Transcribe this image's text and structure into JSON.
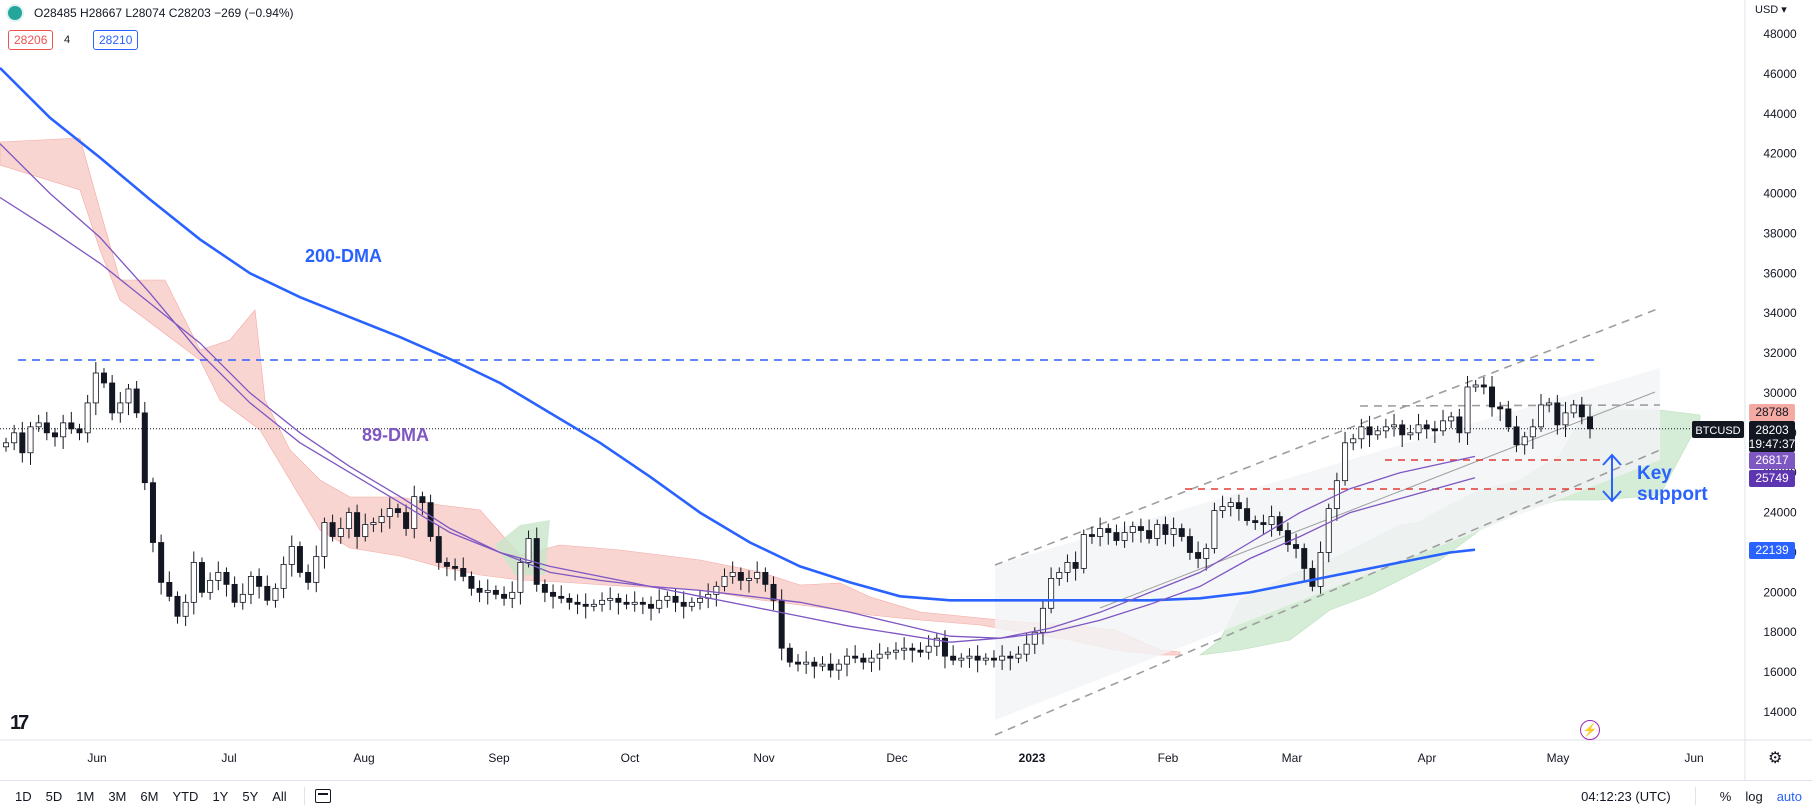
{
  "header": {
    "ohlc": "O28485 H28667 L28074 C28203 −269 (−0.94%)",
    "sell_price": "28206",
    "spread": "4",
    "buy_price": "28210",
    "currency": "USD"
  },
  "bottombar": {
    "timeframes": [
      "1D",
      "5D",
      "1M",
      "3M",
      "6M",
      "YTD",
      "1Y",
      "5Y",
      "All"
    ],
    "time": "04:12:23 (UTC)",
    "percent": "%",
    "log": "log",
    "auto": "auto"
  },
  "annotations": {
    "dma200": "200-DMA",
    "dma89": "89-DMA",
    "key_support_1": "Key",
    "key_support_2": "support"
  },
  "chart_data": {
    "type": "candlestick",
    "symbol": "BTCUSD",
    "ylim": [
      13000,
      49000
    ],
    "y_ticks": [
      14000,
      16000,
      18000,
      20000,
      22000,
      24000,
      26000,
      28000,
      30000,
      32000,
      34000,
      36000,
      38000,
      40000,
      42000,
      44000,
      46000,
      48000
    ],
    "x_labels": [
      "Jun",
      "Jul",
      "Aug",
      "Sep",
      "Oct",
      "Nov",
      "Dec",
      "2023",
      "Feb",
      "Mar",
      "Apr",
      "May",
      "Jun"
    ],
    "price_labels": {
      "last": "28203",
      "countdown": "19:47:37",
      "resistance": "28788",
      "dma89": "26817",
      "dma89_b": "25749",
      "dma200": "22139"
    },
    "dma200_path": [
      [
        0,
        46300
      ],
      [
        50,
        43800
      ],
      [
        100,
        41800
      ],
      [
        150,
        39700
      ],
      [
        200,
        37700
      ],
      [
        250,
        36000
      ],
      [
        300,
        34800
      ],
      [
        350,
        33800
      ],
      [
        400,
        32800
      ],
      [
        450,
        31700
      ],
      [
        500,
        30500
      ],
      [
        550,
        29000
      ],
      [
        600,
        27500
      ],
      [
        650,
        25800
      ],
      [
        700,
        24000
      ],
      [
        750,
        22500
      ],
      [
        800,
        21300
      ],
      [
        850,
        20500
      ],
      [
        900,
        19800
      ],
      [
        950,
        19600
      ],
      [
        1000,
        19600
      ],
      [
        1050,
        19600
      ],
      [
        1100,
        19600
      ],
      [
        1150,
        19600
      ],
      [
        1200,
        19700
      ],
      [
        1250,
        20000
      ],
      [
        1300,
        20500
      ],
      [
        1350,
        21000
      ],
      [
        1400,
        21500
      ],
      [
        1450,
        22000
      ],
      [
        1475,
        22139
      ]
    ],
    "dma89_path": [
      [
        0,
        42500
      ],
      [
        50,
        40000
      ],
      [
        100,
        37800
      ],
      [
        150,
        35000
      ],
      [
        200,
        32000
      ],
      [
        250,
        29500
      ],
      [
        300,
        27500
      ],
      [
        350,
        26000
      ],
      [
        400,
        24500
      ],
      [
        450,
        23000
      ],
      [
        500,
        22000
      ],
      [
        550,
        21300
      ],
      [
        600,
        20800
      ],
      [
        650,
        20300
      ],
      [
        700,
        19800
      ],
      [
        750,
        19300
      ],
      [
        800,
        18800
      ],
      [
        850,
        18300
      ],
      [
        900,
        17900
      ],
      [
        950,
        17500
      ],
      [
        1000,
        17700
      ],
      [
        1050,
        18200
      ],
      [
        1100,
        19000
      ],
      [
        1150,
        20000
      ],
      [
        1200,
        21000
      ],
      [
        1250,
        22500
      ],
      [
        1300,
        24000
      ],
      [
        1350,
        25200
      ],
      [
        1400,
        26000
      ],
      [
        1475,
        26817
      ]
    ],
    "dma_c_path": [
      [
        0,
        39800
      ],
      [
        50,
        38200
      ],
      [
        100,
        36500
      ],
      [
        150,
        34500
      ],
      [
        200,
        32500
      ],
      [
        250,
        30000
      ],
      [
        300,
        28000
      ],
      [
        350,
        26300
      ],
      [
        400,
        24800
      ],
      [
        450,
        23200
      ],
      [
        500,
        22000
      ],
      [
        550,
        21000
      ],
      [
        600,
        20600
      ],
      [
        650,
        20300
      ],
      [
        700,
        20100
      ],
      [
        750,
        19800
      ],
      [
        800,
        19500
      ],
      [
        850,
        19000
      ],
      [
        900,
        18400
      ],
      [
        950,
        17800
      ],
      [
        1000,
        17700
      ],
      [
        1050,
        18000
      ],
      [
        1100,
        18600
      ],
      [
        1150,
        19400
      ],
      [
        1200,
        20300
      ],
      [
        1250,
        21700
      ],
      [
        1300,
        22800
      ],
      [
        1350,
        24000
      ],
      [
        1400,
        24700
      ],
      [
        1475,
        25749
      ]
    ],
    "closes": [
      27500,
      28000,
      27000,
      28300,
      28500,
      28000,
      27800,
      28500,
      28200,
      28000,
      29500,
      31000,
      30500,
      29000,
      29500,
      30200,
      29000,
      25500,
      22500,
      20500,
      19800,
      18800,
      19500,
      21500,
      20000,
      20600,
      21000,
      20400,
      19500,
      19900,
      20800,
      20300,
      19600,
      20200,
      21400,
      22300,
      21000,
      20500,
      21800,
      23500,
      22800,
      23200,
      24000,
      22800,
      23400,
      23500,
      23800,
      24200,
      24000,
      23200,
      24800,
      24500,
      22800,
      21500,
      21300,
      21200,
      20800,
      20200,
      20000,
      20100,
      19900,
      19700,
      20000,
      21500,
      22700,
      20400,
      20000,
      19800,
      19700,
      19500,
      19400,
      19300,
      19400,
      19600,
      19700,
      19500,
      19400,
      19500,
      19400,
      19200,
      19600,
      19800,
      19500,
      19300,
      19500,
      19700,
      19900,
      20300,
      20800,
      21000,
      20600,
      20700,
      21000,
      20400,
      19600,
      17200,
      16500,
      16400,
      16500,
      16300,
      16400,
      16100,
      16400,
      16800,
      16700,
      16500,
      16700,
      16900,
      17000,
      17100,
      17200,
      17100,
      17000,
      17300,
      17700,
      16800,
      16600,
      16700,
      16800,
      16600,
      16700,
      16600,
      16800,
      16700,
      16900,
      17400,
      18000,
      19200,
      20700,
      21000,
      21500,
      21200,
      22900,
      22800,
      23200,
      23000,
      22600,
      23000,
      23300,
      23100,
      22700,
      23400,
      22900,
      23200,
      22800,
      22000,
      21700,
      22200,
      24100,
      24300,
      24500,
      24200,
      23600,
      23500,
      23400,
      23800,
      23100,
      22400,
      22200,
      21200,
      20300,
      22000,
      24200,
      25600,
      27500,
      27700,
      28300,
      27900,
      28100,
      28300,
      28400,
      27900,
      28000,
      28400,
      28200,
      28100,
      28600,
      28800,
      28000,
      30300,
      30400,
      30300,
      29300,
      29200,
      28300,
      27400,
      27800,
      28300,
      29400,
      29500,
      28400,
      29000,
      29400,
      28800,
      28203
    ]
  }
}
